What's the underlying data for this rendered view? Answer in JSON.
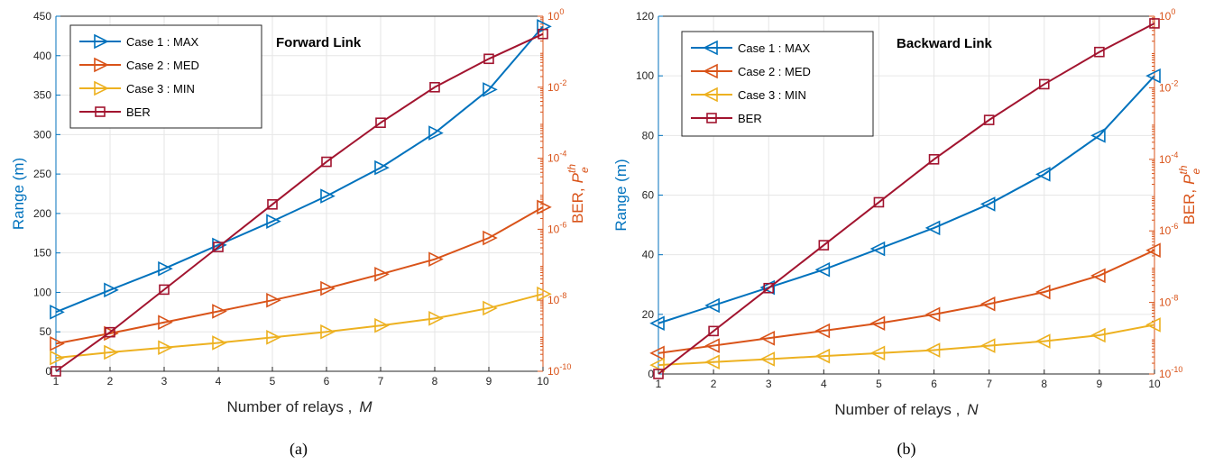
{
  "colors": {
    "max": "#0072BD",
    "med": "#D95319",
    "min": "#EDB120",
    "ber": "#A2142F",
    "axis": "#262626"
  },
  "chart_data": [
    {
      "type": "line",
      "panel_label": "(a)",
      "annotation": "Forward Link",
      "xlabel": "Number of relays ,",
      "xlabel_symbol": "M",
      "ylabel_left": "Range (m)",
      "ylabel_right": "BER,",
      "ylabel_right_symbol": "P",
      "ylabel_right_sup": "th",
      "ylabel_right_sub": "e",
      "x": [
        1,
        2,
        3,
        4,
        5,
        6,
        7,
        8,
        9,
        10
      ],
      "xlim": [
        1,
        10
      ],
      "ylim_left": [
        0,
        450
      ],
      "yticks_left": [
        0,
        50,
        100,
        150,
        200,
        250,
        300,
        350,
        400,
        450
      ],
      "ylim_right_log10": [
        -10,
        0
      ],
      "yticks_right": [
        {
          "base": "10",
          "exp": "-10",
          "value": -10
        },
        {
          "base": "10",
          "exp": "-8",
          "value": -8
        },
        {
          "base": "10",
          "exp": "-6",
          "value": -6
        },
        {
          "base": "10",
          "exp": "-4",
          "value": -4
        },
        {
          "base": "10",
          "exp": "-2",
          "value": -2
        },
        {
          "base": "10",
          "exp": "0",
          "value": 0
        }
      ],
      "grid": true,
      "legend_position": "top-left",
      "series": [
        {
          "name": "Case 1 : MAX",
          "color_key": "max",
          "axis": "left",
          "marker": "triangle-right",
          "values": [
            75,
            103,
            130,
            160,
            190,
            222,
            258,
            302,
            357,
            437
          ]
        },
        {
          "name": "Case 2 : MED",
          "color_key": "med",
          "axis": "left",
          "marker": "triangle-right",
          "values": [
            35,
            48,
            62,
            76,
            90,
            105,
            123,
            142,
            169,
            208
          ]
        },
        {
          "name": "Case 3 : MIN",
          "color_key": "min",
          "axis": "left",
          "marker": "triangle-right",
          "values": [
            17,
            24,
            30,
            36,
            43,
            50,
            58,
            67,
            80,
            98
          ]
        },
        {
          "name": "BER",
          "color_key": "ber",
          "axis": "right",
          "marker": "square",
          "values_log10": [
            -10,
            -8.9,
            -7.7,
            -6.5,
            -5.3,
            -4.1,
            -3.0,
            -2.0,
            -1.2,
            -0.5
          ]
        }
      ]
    },
    {
      "type": "line",
      "panel_label": "(b)",
      "annotation": "Backward Link",
      "xlabel": "Number of relays ,",
      "xlabel_symbol": "N",
      "ylabel_left": "Range (m)",
      "ylabel_right": "BER,",
      "ylabel_right_symbol": "P",
      "ylabel_right_sup": "th",
      "ylabel_right_sub": "e",
      "x": [
        1,
        2,
        3,
        4,
        5,
        6,
        7,
        8,
        9,
        10
      ],
      "xlim": [
        1,
        10
      ],
      "ylim_left": [
        0,
        120
      ],
      "yticks_left": [
        0,
        20,
        40,
        60,
        80,
        100,
        120
      ],
      "ylim_right_log10": [
        -10,
        0
      ],
      "yticks_right": [
        {
          "base": "10",
          "exp": "-10",
          "value": -10
        },
        {
          "base": "10",
          "exp": "-8",
          "value": -8
        },
        {
          "base": "10",
          "exp": "-6",
          "value": -6
        },
        {
          "base": "10",
          "exp": "-4",
          "value": -4
        },
        {
          "base": "10",
          "exp": "-2",
          "value": -2
        },
        {
          "base": "10",
          "exp": "0",
          "value": 0
        }
      ],
      "grid": true,
      "legend_position": "top-left",
      "series": [
        {
          "name": "Case 1 : MAX",
          "color_key": "max",
          "axis": "left",
          "marker": "triangle-left",
          "values": [
            17,
            23,
            29,
            35,
            42,
            49,
            57,
            67,
            80,
            100
          ]
        },
        {
          "name": "Case 2 : MED",
          "color_key": "med",
          "axis": "left",
          "marker": "triangle-left",
          "values": [
            7,
            9.5,
            12,
            14.5,
            17,
            20,
            23.5,
            27.5,
            33,
            41.5
          ]
        },
        {
          "name": "Case 3 : MIN",
          "color_key": "min",
          "axis": "left",
          "marker": "triangle-left",
          "values": [
            3,
            4,
            5,
            6,
            7,
            8,
            9.5,
            11,
            13,
            16.5
          ]
        },
        {
          "name": "BER",
          "color_key": "ber",
          "axis": "right",
          "marker": "square",
          "values_log10": [
            -10,
            -8.8,
            -7.6,
            -6.4,
            -5.2,
            -4.0,
            -2.9,
            -1.9,
            -1.0,
            -0.2
          ]
        }
      ]
    }
  ]
}
